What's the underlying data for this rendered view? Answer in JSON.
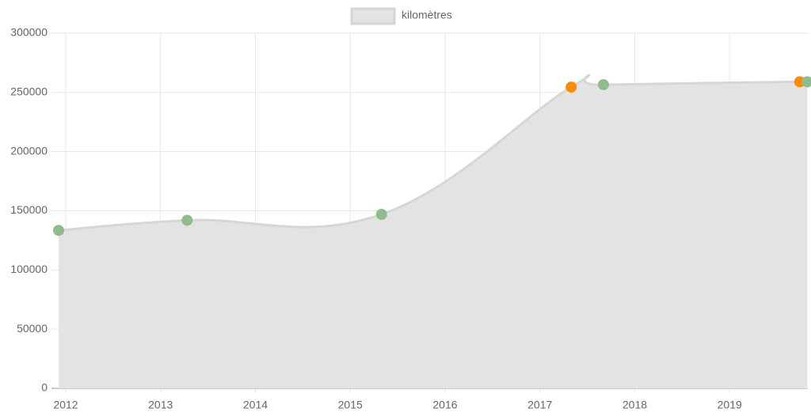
{
  "chart_data": {
    "type": "line",
    "legend": "kilomètres",
    "x": [
      2011.925,
      2013.28,
      2015.33,
      2017.33,
      2017.67,
      2019.74,
      2019.82
    ],
    "values": [
      133500,
      142000,
      147000,
      254500,
      256500,
      259000,
      259000
    ],
    "point_colors": [
      "#8fbc8f",
      "#8fbc8f",
      "#8fbc8f",
      "#ff8c00",
      "#8fbc8f",
      "#ff8c00",
      "#8fbc8f"
    ],
    "color": "#d6d6d6",
    "fill": "#e3e3e3",
    "xlim": [
      2011.85,
      2019.825
    ],
    "xticks": [
      2012,
      2013,
      2014,
      2015,
      2016,
      2017,
      2018,
      2019
    ],
    "ylim": [
      0,
      300000
    ],
    "yticks": [
      0,
      50000,
      100000,
      150000,
      200000,
      250000,
      300000
    ],
    "grid": true
  }
}
